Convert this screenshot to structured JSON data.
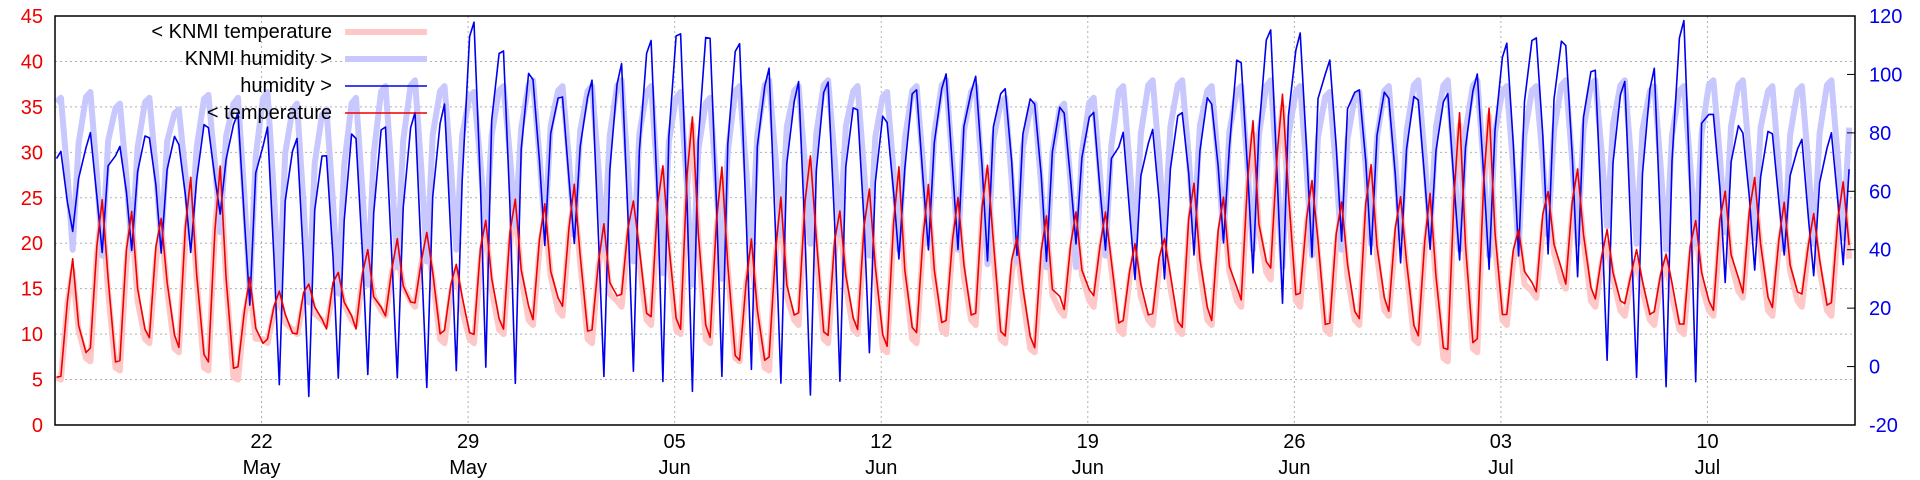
{
  "chart_data": {
    "type": "line",
    "title": "",
    "xlabel": "",
    "ylabel": "",
    "y2label": "",
    "grid": true,
    "legend_position": "top-left",
    "x_range": [
      "2023-05-15",
      "2023-07-15"
    ],
    "ylim": [
      0,
      45
    ],
    "y2lim": [
      -20,
      120
    ],
    "y_ticks": [
      0,
      5,
      10,
      15,
      20,
      25,
      30,
      35,
      40,
      45
    ],
    "y2_ticks": [
      -20,
      0,
      20,
      40,
      60,
      80,
      100,
      120
    ],
    "x_ticks": [
      {
        "date": "2023-05-22",
        "day": "22",
        "month": "May"
      },
      {
        "date": "2023-05-29",
        "day": "29",
        "month": "May"
      },
      {
        "date": "2023-06-05",
        "day": "05",
        "month": "Jun"
      },
      {
        "date": "2023-06-12",
        "day": "12",
        "month": "Jun"
      },
      {
        "date": "2023-06-19",
        "day": "19",
        "month": "Jun"
      },
      {
        "date": "2023-06-26",
        "day": "26",
        "month": "Jun"
      },
      {
        "date": "2023-07-03",
        "day": "03",
        "month": "Jul"
      },
      {
        "date": "2023-07-10",
        "day": "10",
        "month": "Jul"
      }
    ],
    "series": [
      {
        "name": "< KNMI temperature",
        "axis": "left",
        "color": "#ffc8c8",
        "width": 6,
        "daily_min": [
          5,
          7,
          6,
          9,
          8,
          6,
          5,
          9,
          10,
          11,
          11,
          12,
          13,
          9,
          9,
          10,
          11,
          12,
          9,
          13,
          11,
          10,
          9,
          7,
          6,
          11,
          9,
          10,
          8,
          9,
          10,
          11,
          9,
          8,
          12,
          13,
          10,
          11,
          10,
          11,
          13,
          16,
          13,
          10,
          11,
          12,
          9,
          7,
          8,
          11,
          14,
          15,
          13,
          12,
          11,
          10,
          12,
          14,
          12,
          13,
          12,
          12
        ],
        "daily_max": [
          17,
          24,
          23,
          22,
          26,
          28,
          15,
          14,
          15,
          16,
          18,
          19,
          20,
          17,
          22,
          24,
          23,
          25,
          21,
          24,
          28,
          33,
          27,
          19,
          24,
          29,
          23,
          25,
          27,
          25,
          24,
          28,
          20,
          22,
          22,
          22,
          19,
          20,
          26,
          24,
          32,
          35,
          26,
          24,
          28,
          24,
          24,
          33,
          34,
          21,
          25,
          27,
          20,
          18,
          18,
          22,
          25,
          26,
          23,
          22,
          26,
          27
        ]
      },
      {
        "name": "KNMI humidity >",
        "axis": "right",
        "color": "#c8c8ff",
        "width": 6,
        "daily_min": [
          40,
          38,
          40,
          42,
          44,
          46,
          25,
          24,
          22,
          25,
          28,
          34,
          36,
          40,
          45,
          48,
          46,
          45,
          40,
          36,
          32,
          28,
          30,
          40,
          45,
          42,
          45,
          38,
          40,
          42,
          40,
          35,
          36,
          34,
          34,
          38,
          42,
          45,
          46,
          44,
          40,
          34,
          38,
          40,
          42,
          44,
          45,
          40,
          38,
          40,
          45,
          42,
          48,
          42,
          40,
          42,
          46,
          44,
          40,
          42,
          44,
          46
        ],
        "daily_max": [
          92,
          94,
          90,
          92,
          88,
          93,
          92,
          94,
          90,
          88,
          92,
          96,
          98,
          96,
          94,
          96,
          98,
          96,
          96,
          98,
          96,
          94,
          92,
          96,
          98,
          96,
          98,
          96,
          94,
          96,
          98,
          96,
          92,
          90,
          90,
          92,
          96,
          98,
          98,
          96,
          96,
          98,
          96,
          94,
          94,
          96,
          98,
          98,
          98,
          96,
          96,
          98,
          98,
          98,
          96,
          96,
          98,
          98,
          96,
          96,
          98,
          96
        ]
      },
      {
        "name": "humidity >",
        "axis": "right",
        "color": "#0000ee",
        "width": 1.6,
        "daily_min": [
          45,
          40,
          42,
          40,
          38,
          50,
          20,
          -5,
          -8,
          -3,
          -4,
          -6,
          -8,
          0,
          2,
          -5,
          40,
          40,
          -4,
          0,
          -3,
          -8,
          -5,
          -3,
          -6,
          -8,
          -3,
          5,
          35,
          38,
          40,
          38,
          40,
          36,
          40,
          38,
          30,
          32,
          40,
          42,
          30,
          20,
          38,
          45,
          40,
          35,
          38,
          35,
          34,
          40,
          40,
          30,
          0,
          -5,
          -6,
          -3,
          30,
          32,
          36,
          30,
          36,
          45
        ],
        "daily_max": [
          72,
          78,
          75,
          80,
          78,
          82,
          85,
          80,
          78,
          74,
          80,
          82,
          85,
          88,
          118,
          110,
          100,
          92,
          96,
          102,
          112,
          116,
          114,
          110,
          100,
          96,
          98,
          90,
          85,
          94,
          98,
          98,
          96,
          92,
          88,
          86,
          78,
          80,
          88,
          92,
          105,
          114,
          112,
          104,
          96,
          94,
          92,
          92,
          98,
          110,
          114,
          112,
          102,
          96,
          100,
          118,
          88,
          82,
          80,
          76,
          78,
          70
        ]
      },
      {
        "name": "< temperature",
        "axis": "left",
        "color": "#ee0000",
        "width": 1.6,
        "daily_min": [
          5,
          8,
          7,
          10,
          9,
          7,
          6,
          9,
          10,
          11,
          11,
          12,
          13,
          10,
          10,
          11,
          12,
          13,
          10,
          14,
          12,
          11,
          10,
          7,
          7,
          12,
          10,
          11,
          9,
          10,
          11,
          12,
          10,
          9,
          13,
          14,
          11,
          12,
          11,
          12,
          14,
          17,
          14,
          11,
          12,
          13,
          10,
          8,
          9,
          12,
          15,
          16,
          14,
          13,
          12,
          11,
          13,
          15,
          13,
          14,
          13,
          13
        ],
        "daily_max": [
          18,
          25,
          24,
          23,
          27,
          28,
          16,
          15,
          16,
          17,
          19,
          20,
          21,
          18,
          23,
          25,
          24,
          26,
          22,
          25,
          29,
          34,
          28,
          20,
          25,
          30,
          24,
          26,
          28,
          26,
          25,
          29,
          21,
          23,
          23,
          23,
          20,
          21,
          27,
          25,
          33,
          36,
          27,
          25,
          29,
          25,
          25,
          34,
          35,
          22,
          26,
          28,
          21,
          19,
          19,
          23,
          26,
          27,
          24,
          23,
          27,
          28
        ]
      }
    ]
  }
}
